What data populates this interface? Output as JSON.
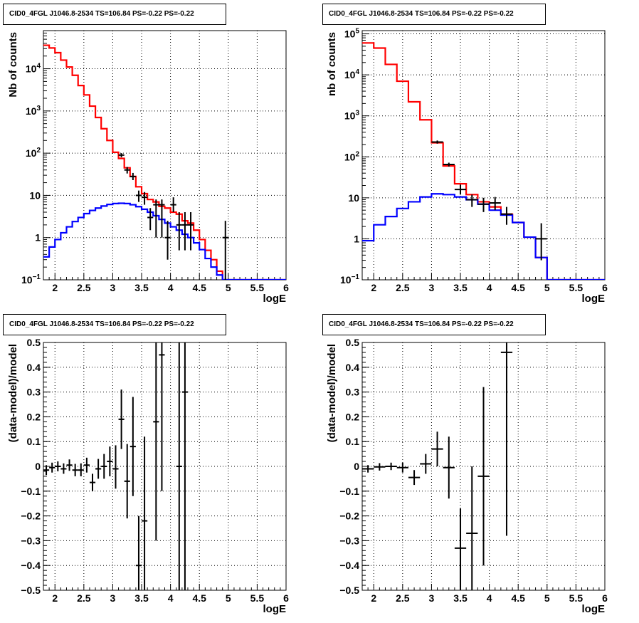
{
  "chart_data": [
    {
      "panel": "top-left",
      "type": "line",
      "title": "CID0_4FGL J1046.8-2534 TS=106.84 PS=-0.22 PS=-0.22",
      "xlabel": "logE",
      "ylabel": "Nb of counts",
      "xlim": [
        1.8,
        6.0
      ],
      "ylim": [
        0.1,
        80000
      ],
      "yscale": "log",
      "grid": true,
      "x_ticks": [
        "2",
        "2.5",
        "3",
        "3.5",
        "4",
        "4.5",
        "5",
        "5.5",
        "6"
      ],
      "y_ticks": [
        "10⁻¹",
        "1",
        "10",
        "10²",
        "10³",
        "10⁴"
      ],
      "y_tick_values": [
        0.1,
        1,
        10,
        100,
        1000,
        10000
      ],
      "series": [
        {
          "color": "#ff0000",
          "kind": "step",
          "bin_edges": [
            1.8,
            1.9,
            2.0,
            2.1,
            2.2,
            2.3,
            2.4,
            2.5,
            2.6,
            2.7,
            2.8,
            2.9,
            3.0,
            3.1,
            3.2,
            3.3,
            3.4,
            3.5,
            3.6,
            3.7,
            3.8,
            3.9,
            4.0,
            4.1,
            4.2,
            4.3,
            4.4,
            4.5,
            4.6,
            4.7,
            4.8,
            4.9,
            5.0,
            5.1,
            5.2,
            5.3,
            5.4,
            5.5,
            5.6,
            5.7,
            5.8,
            5.9,
            6.0
          ],
          "values": [
            36000,
            31000,
            24000,
            16000,
            11000,
            7000,
            4000,
            2400,
            1300,
            700,
            380,
            200,
            105,
            75,
            45,
            28,
            16,
            11,
            8,
            7,
            5.5,
            5,
            4,
            3.6,
            2.5,
            2.2,
            1.5,
            0.9,
            0.5,
            0.3,
            0.16,
            0.1,
            0.1,
            0.1,
            0.1,
            0.1,
            0.1,
            0.1,
            0.1,
            0.1,
            0.1,
            0.1
          ]
        },
        {
          "color": "#0000ff",
          "kind": "step",
          "bin_edges": [
            1.8,
            1.9,
            2.0,
            2.1,
            2.2,
            2.3,
            2.4,
            2.5,
            2.6,
            2.7,
            2.8,
            2.9,
            3.0,
            3.1,
            3.2,
            3.3,
            3.4,
            3.5,
            3.6,
            3.7,
            3.8,
            3.9,
            4.0,
            4.1,
            4.2,
            4.3,
            4.4,
            4.5,
            4.6,
            4.7,
            4.8,
            4.9,
            5.0,
            5.1,
            5.2,
            5.3,
            5.4,
            5.5,
            5.6,
            5.7,
            5.8,
            5.9,
            6.0
          ],
          "values": [
            0.35,
            0.6,
            0.9,
            1.3,
            1.8,
            2.4,
            3.0,
            3.7,
            4.4,
            5.0,
            5.6,
            6.1,
            6.4,
            6.5,
            6.4,
            6.0,
            5.4,
            4.7,
            4.0,
            3.3,
            2.7,
            2.2,
            1.8,
            1.5,
            1.2,
            1.0,
            0.75,
            0.52,
            0.32,
            0.2,
            0.13,
            0.1,
            0.1,
            0.1,
            0.1,
            0.1,
            0.1,
            0.1,
            0.1,
            0.1,
            0.1,
            0.1
          ]
        },
        {
          "color": "#000000",
          "kind": "data",
          "points": [
            {
              "x": 3.15,
              "y": 90,
              "xerr": 0.05,
              "ylo": 80,
              "yhi": 100
            },
            {
              "x": 3.25,
              "y": 40,
              "xerr": 0.05,
              "ylo": 33,
              "yhi": 47
            },
            {
              "x": 3.35,
              "y": 28,
              "xerr": 0.05,
              "ylo": 23,
              "yhi": 34
            },
            {
              "x": 3.45,
              "y": 10,
              "xerr": 0.05,
              "ylo": 7,
              "yhi": 13
            },
            {
              "x": 3.55,
              "y": 9,
              "xerr": 0.05,
              "ylo": 6,
              "yhi": 12
            },
            {
              "x": 3.65,
              "y": 3,
              "xerr": 0.05,
              "ylo": 1.5,
              "yhi": 5
            },
            {
              "x": 3.75,
              "y": 6,
              "xerr": 0.05,
              "ylo": 1,
              "yhi": 8
            },
            {
              "x": 3.85,
              "y": 6,
              "xerr": 0.05,
              "ylo": 1,
              "yhi": 8
            },
            {
              "x": 3.95,
              "y": 1,
              "xerr": 0.05,
              "ylo": 0.3,
              "yhi": 2.5
            },
            {
              "x": 4.05,
              "y": 6,
              "xerr": 0.05,
              "ylo": 4,
              "yhi": 9
            },
            {
              "x": 4.15,
              "y": 2,
              "xerr": 0.05,
              "ylo": 0.5,
              "yhi": 4
            },
            {
              "x": 4.25,
              "y": 2,
              "xerr": 0.05,
              "ylo": 0.5,
              "yhi": 4
            },
            {
              "x": 4.35,
              "y": 2,
              "xerr": 0.05,
              "ylo": 0.5,
              "yhi": 4
            },
            {
              "x": 4.95,
              "y": 1,
              "xerr": 0.05,
              "ylo": 0.1,
              "yhi": 2.5
            }
          ]
        }
      ]
    },
    {
      "panel": "top-right",
      "type": "line",
      "title": "CID0_4FGL J1046.8-2534 TS=106.84 PS=-0.22 PS=-0.22",
      "xlabel": "logE",
      "ylabel": "nb of counts",
      "xlim": [
        1.8,
        6.0
      ],
      "ylim": [
        0.1,
        120000
      ],
      "yscale": "log",
      "grid": true,
      "x_ticks": [
        "2",
        "2.5",
        "3",
        "3.5",
        "4",
        "4.5",
        "5",
        "5.5",
        "6"
      ],
      "y_ticks": [
        "10⁻¹",
        "1",
        "10",
        "10²",
        "10³",
        "10⁴",
        "10⁵"
      ],
      "y_tick_values": [
        0.1,
        1,
        10,
        100,
        1000,
        10000,
        100000
      ],
      "series": [
        {
          "color": "#ff0000",
          "kind": "step",
          "bin_edges": [
            1.8,
            2.0,
            2.2,
            2.4,
            2.6,
            2.8,
            3.0,
            3.2,
            3.4,
            3.6,
            3.8,
            4.0,
            4.2,
            4.4,
            4.6,
            4.8,
            5.0,
            5.2,
            5.4,
            5.6,
            5.8,
            6.0
          ],
          "values": [
            60000,
            45000,
            18000,
            7000,
            2200,
            800,
            220,
            60,
            22,
            12,
            8,
            6,
            4,
            2.5,
            1.1,
            0.35,
            0.1,
            0.1,
            0.1,
            0.1,
            0.1
          ]
        },
        {
          "color": "#0000ff",
          "kind": "step",
          "bin_edges": [
            1.8,
            2.0,
            2.2,
            2.4,
            2.6,
            2.8,
            3.0,
            3.2,
            3.4,
            3.6,
            3.8,
            4.0,
            4.2,
            4.4,
            4.6,
            4.8,
            5.0,
            5.2,
            5.4,
            5.6,
            5.8,
            6.0
          ],
          "values": [
            0.9,
            2.2,
            3.5,
            5.5,
            8,
            10.5,
            12.5,
            12,
            10.5,
            9,
            7,
            5,
            3.8,
            2.5,
            1.1,
            0.35,
            0.1,
            0.1,
            0.1,
            0.1,
            0.1
          ]
        },
        {
          "color": "#000000",
          "kind": "data",
          "points": [
            {
              "x": 3.1,
              "y": 230,
              "xerr": 0.1,
              "ylo": 210,
              "yhi": 250
            },
            {
              "x": 3.3,
              "y": 65,
              "xerr": 0.1,
              "ylo": 58,
              "yhi": 72
            },
            {
              "x": 3.5,
              "y": 16,
              "xerr": 0.1,
              "ylo": 12,
              "yhi": 21
            },
            {
              "x": 3.7,
              "y": 9,
              "xerr": 0.1,
              "ylo": 6,
              "yhi": 12
            },
            {
              "x": 3.9,
              "y": 7,
              "xerr": 0.1,
              "ylo": 4.5,
              "yhi": 10
            },
            {
              "x": 4.1,
              "y": 7.5,
              "xerr": 0.1,
              "ylo": 5,
              "yhi": 10.5
            },
            {
              "x": 4.3,
              "y": 4,
              "xerr": 0.1,
              "ylo": 2.2,
              "yhi": 6
            },
            {
              "x": 4.9,
              "y": 1,
              "xerr": 0.1,
              "ylo": 0.3,
              "yhi": 2.4
            }
          ]
        }
      ]
    },
    {
      "panel": "bottom-left",
      "type": "scatter",
      "title": "CID0_4FGL J1046.8-2534 TS=106.84 PS=-0.22 PS=-0.22",
      "xlabel": "logE",
      "ylabel": "(data-model)/model",
      "xlim": [
        1.8,
        6.0
      ],
      "ylim": [
        -0.5,
        0.5
      ],
      "yscale": "linear",
      "grid": true,
      "x_ticks": [
        "2",
        "2.5",
        "3",
        "3.5",
        "4",
        "4.5",
        "5",
        "5.5",
        "6"
      ],
      "y_ticks": [
        "−0.5",
        "−0.4",
        "−0.3",
        "−0.2",
        "−0.1",
        "0",
        "0.1",
        "0.2",
        "0.3",
        "0.4",
        "0.5"
      ],
      "y_tick_values": [
        -0.5,
        -0.4,
        -0.3,
        -0.2,
        -0.1,
        0,
        0.1,
        0.2,
        0.3,
        0.4,
        0.5
      ],
      "series": [
        {
          "color": "#000000",
          "kind": "data",
          "points": [
            {
              "x": 1.85,
              "y": -0.015,
              "xerr": 0.05,
              "ylo": -0.035,
              "yhi": 0.005
            },
            {
              "x": 1.95,
              "y": -0.005,
              "xerr": 0.05,
              "ylo": -0.025,
              "yhi": 0.015
            },
            {
              "x": 2.05,
              "y": 0.0,
              "xerr": 0.05,
              "ylo": -0.02,
              "yhi": 0.02
            },
            {
              "x": 2.15,
              "y": -0.01,
              "xerr": 0.05,
              "ylo": -0.03,
              "yhi": 0.012
            },
            {
              "x": 2.25,
              "y": 0.005,
              "xerr": 0.05,
              "ylo": -0.018,
              "yhi": 0.028
            },
            {
              "x": 2.35,
              "y": -0.015,
              "xerr": 0.05,
              "ylo": -0.04,
              "yhi": 0.01
            },
            {
              "x": 2.45,
              "y": -0.015,
              "xerr": 0.05,
              "ylo": -0.04,
              "yhi": 0.012
            },
            {
              "x": 2.55,
              "y": 0.005,
              "xerr": 0.05,
              "ylo": -0.025,
              "yhi": 0.035
            },
            {
              "x": 2.65,
              "y": -0.065,
              "xerr": 0.05,
              "ylo": -0.1,
              "yhi": -0.03
            },
            {
              "x": 2.75,
              "y": -0.01,
              "xerr": 0.05,
              "ylo": -0.05,
              "yhi": 0.03
            },
            {
              "x": 2.85,
              "y": 0.0,
              "xerr": 0.05,
              "ylo": -0.05,
              "yhi": 0.05
            },
            {
              "x": 2.95,
              "y": 0.02,
              "xerr": 0.05,
              "ylo": -0.04,
              "yhi": 0.08
            },
            {
              "x": 3.05,
              "y": -0.01,
              "xerr": 0.05,
              "ylo": -0.09,
              "yhi": 0.085
            },
            {
              "x": 3.15,
              "y": 0.19,
              "xerr": 0.05,
              "ylo": 0.07,
              "yhi": 0.31
            },
            {
              "x": 3.25,
              "y": -0.06,
              "xerr": 0.05,
              "ylo": -0.21,
              "yhi": 0.09
            },
            {
              "x": 3.35,
              "y": 0.08,
              "xerr": 0.05,
              "ylo": -0.12,
              "yhi": 0.28
            },
            {
              "x": 3.45,
              "y": -0.4,
              "xerr": 0.05,
              "ylo": -0.6,
              "yhi": -0.2
            },
            {
              "x": 3.55,
              "y": -0.22,
              "xerr": 0.05,
              "ylo": -0.6,
              "yhi": 0.12
            },
            {
              "x": 3.75,
              "y": 0.18,
              "xerr": 0.05,
              "ylo": -0.3,
              "yhi": 0.7
            },
            {
              "x": 3.85,
              "y": 0.45,
              "xerr": 0.05,
              "ylo": -0.1,
              "yhi": 1.1
            },
            {
              "x": 4.15,
              "y": 0.0,
              "xerr": 0.05,
              "ylo": -0.8,
              "yhi": 0.8
            },
            {
              "x": 4.25,
              "y": 0.3,
              "xerr": 0.05,
              "ylo": -0.5,
              "yhi": 1.1
            }
          ]
        }
      ]
    },
    {
      "panel": "bottom-right",
      "type": "scatter",
      "title": "CID0_4FGL J1046.8-2534 TS=106.84 PS=-0.22 PS=-0.22",
      "xlabel": "logE",
      "ylabel": "(data-model)/model",
      "xlim": [
        1.8,
        6.0
      ],
      "ylim": [
        -0.5,
        0.5
      ],
      "yscale": "linear",
      "grid": true,
      "x_ticks": [
        "2",
        "2.5",
        "3",
        "3.5",
        "4",
        "4.5",
        "5",
        "5.5",
        "6"
      ],
      "y_ticks": [
        "−0.5",
        "−0.4",
        "−0.3",
        "−0.2",
        "−0.1",
        "0",
        "0.1",
        "0.2",
        "0.3",
        "0.4",
        "0.5"
      ],
      "y_tick_values": [
        -0.5,
        -0.4,
        -0.3,
        -0.2,
        -0.1,
        0,
        0.1,
        0.2,
        0.3,
        0.4,
        0.5
      ],
      "series": [
        {
          "color": "#000000",
          "kind": "data",
          "points": [
            {
              "x": 1.9,
              "y": -0.01,
              "xerr": 0.1,
              "ylo": -0.025,
              "yhi": 0.005
            },
            {
              "x": 2.1,
              "y": -0.002,
              "xerr": 0.1,
              "ylo": -0.017,
              "yhi": 0.013
            },
            {
              "x": 2.3,
              "y": 0.0,
              "xerr": 0.1,
              "ylo": -0.015,
              "yhi": 0.015
            },
            {
              "x": 2.5,
              "y": -0.005,
              "xerr": 0.1,
              "ylo": -0.025,
              "yhi": 0.015
            },
            {
              "x": 2.7,
              "y": -0.045,
              "xerr": 0.1,
              "ylo": -0.075,
              "yhi": -0.015
            },
            {
              "x": 2.9,
              "y": 0.01,
              "xerr": 0.1,
              "ylo": -0.03,
              "yhi": 0.05
            },
            {
              "x": 3.1,
              "y": 0.07,
              "xerr": 0.1,
              "ylo": 0.0,
              "yhi": 0.14
            },
            {
              "x": 3.3,
              "y": -0.005,
              "xerr": 0.1,
              "ylo": -0.13,
              "yhi": 0.12
            },
            {
              "x": 3.5,
              "y": -0.33,
              "xerr": 0.1,
              "ylo": -0.5,
              "yhi": -0.17
            },
            {
              "x": 3.7,
              "y": -0.27,
              "xerr": 0.1,
              "ylo": -0.55,
              "yhi": 0.0
            },
            {
              "x": 3.9,
              "y": -0.04,
              "xerr": 0.1,
              "ylo": -0.4,
              "yhi": 0.32
            },
            {
              "x": 4.3,
              "y": 0.46,
              "xerr": 0.1,
              "ylo": -0.28,
              "yhi": 1.2
            }
          ]
        }
      ]
    }
  ]
}
